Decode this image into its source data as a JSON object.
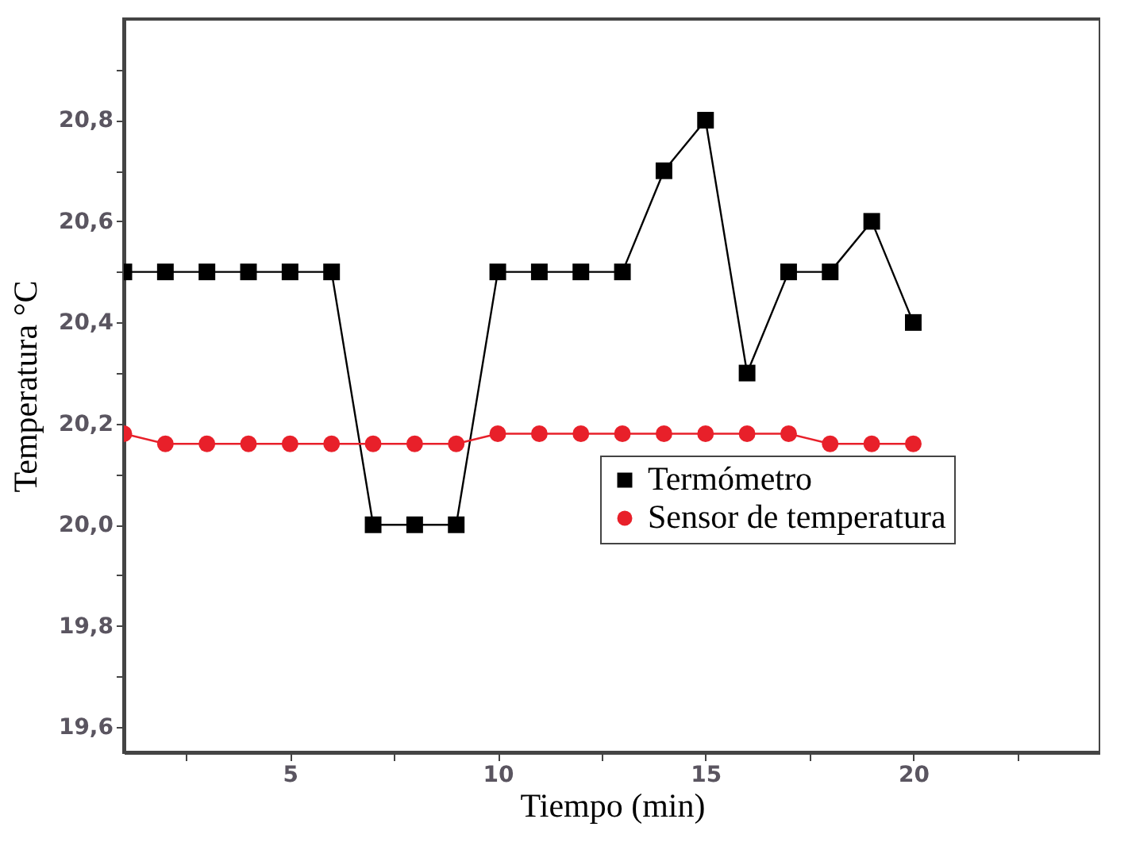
{
  "chart_data": {
    "type": "line",
    "xlabel": "Tiempo (min)",
    "ylabel": "Temperatura °C",
    "x": [
      1,
      2,
      3,
      4,
      5,
      6,
      7,
      8,
      9,
      10,
      11,
      12,
      13,
      14,
      15,
      16,
      17,
      18,
      19,
      20
    ],
    "series": [
      {
        "name": "Termómetro",
        "color": "#000000",
        "marker": "square",
        "values": [
          20.5,
          20.5,
          20.5,
          20.5,
          20.5,
          20.5,
          20.0,
          20.0,
          20.0,
          20.5,
          20.5,
          20.5,
          20.5,
          20.7,
          20.8,
          20.3,
          20.5,
          20.5,
          20.6,
          20.4
        ]
      },
      {
        "name": "Sensor de temperatura",
        "color": "#e8202a",
        "marker": "circle",
        "values": [
          20.18,
          20.16,
          20.16,
          20.16,
          20.16,
          20.16,
          20.16,
          20.16,
          20.16,
          20.18,
          20.18,
          20.18,
          20.18,
          20.18,
          20.18,
          20.18,
          20.18,
          20.16,
          20.16,
          20.16
        ]
      }
    ],
    "xlim": [
      1,
      24.5
    ],
    "ylim": [
      19.55,
      21.0
    ],
    "xticks": [
      {
        "value": 2.5,
        "label": null
      },
      5,
      {
        "value": 7.5,
        "label": null
      },
      10,
      {
        "value": 12.5,
        "label": null
      },
      15,
      {
        "value": 17.5,
        "label": null
      },
      20,
      {
        "value": 22.5,
        "label": null
      }
    ],
    "yticks": [
      {
        "value": 19.6,
        "label": "19,6"
      },
      {
        "value": 19.7,
        "label": null
      },
      {
        "value": 19.8,
        "label": "19,8"
      },
      {
        "value": 19.9,
        "label": null
      },
      {
        "value": 20.0,
        "label": "20,0"
      },
      {
        "value": 20.1,
        "label": null
      },
      {
        "value": 20.2,
        "label": "20,2"
      },
      {
        "value": 20.3,
        "label": null
      },
      {
        "value": 20.4,
        "label": "20,4"
      },
      {
        "value": 20.5,
        "label": null
      },
      {
        "value": 20.6,
        "label": "20,6"
      },
      {
        "value": 20.7,
        "label": null
      },
      {
        "value": 20.8,
        "label": "20,8"
      },
      {
        "value": 20.9,
        "label": null
      }
    ],
    "legend": "bottom right"
  }
}
